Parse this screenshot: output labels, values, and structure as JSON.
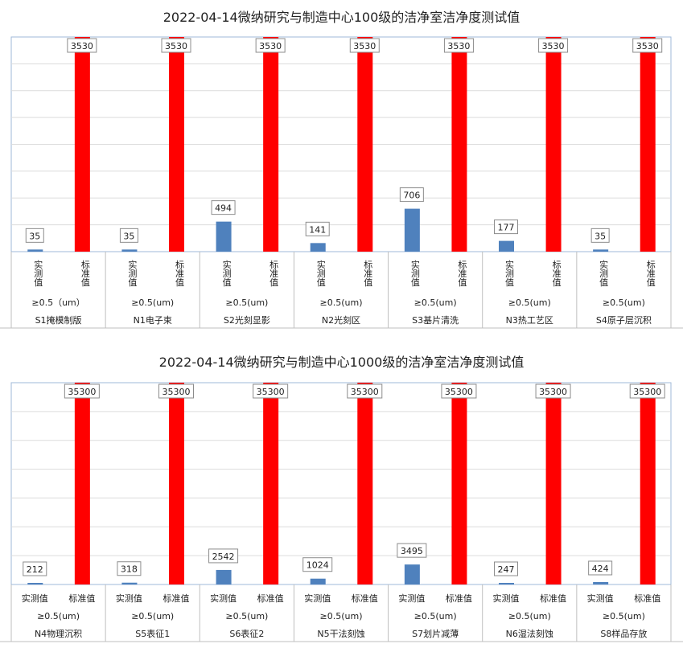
{
  "chart_data": [
    {
      "type": "bar",
      "title": "2022-04-14微纳研究与制造中心100级的洁净室洁净度测试值",
      "series_labels": [
        "实测值",
        "标准值"
      ],
      "groups": [
        {
          "particle": "≥0.5（um）",
          "name": "S1掩模制版",
          "measured": 35,
          "standard": 3530
        },
        {
          "particle": "≥0.5(um)",
          "name": "N1电子束",
          "measured": 35,
          "standard": 3530
        },
        {
          "particle": "≥0.5(um)",
          "name": "S2光刻显影",
          "measured": 494,
          "standard": 3530
        },
        {
          "particle": "≥0.5(um)",
          "name": "N2光刻区",
          "measured": 141,
          "standard": 3530
        },
        {
          "particle": "≥0.5(um)",
          "name": "S3基片清洗",
          "measured": 706,
          "standard": 3530
        },
        {
          "particle": "≥0.5(um)",
          "name": "N3热工艺区",
          "measured": 177,
          "standard": 3530
        },
        {
          "particle": "≥0.5(um)",
          "name": "S4原子层沉积",
          "measured": 35,
          "standard": 3530
        }
      ],
      "ylim": [
        0,
        3530
      ],
      "colors": {
        "measured": "#4f81bd",
        "standard": "#ff0000"
      },
      "grid": true
    },
    {
      "type": "bar",
      "title": "2022-04-14微纳研究与制造中心1000级的洁净室洁净度测试值",
      "series_labels": [
        "实测值",
        "标准值"
      ],
      "groups": [
        {
          "particle": "≥0.5(um)",
          "name": "N4物理沉积",
          "measured": 212,
          "standard": 35300
        },
        {
          "particle": "≥0.5(um)",
          "name": "S5表征1",
          "measured": 318,
          "standard": 35300
        },
        {
          "particle": "≥0.5(um)",
          "name": "S6表征2",
          "measured": 2542,
          "standard": 35300
        },
        {
          "particle": "≥0.5(um)",
          "name": "N5干法刻蚀",
          "measured": 1024,
          "standard": 35300
        },
        {
          "particle": "≥0.5(um)",
          "name": "S7划片减薄",
          "measured": 3495,
          "standard": 35300
        },
        {
          "particle": "≥0.5(um)",
          "name": "N6湿法刻蚀",
          "measured": 247,
          "standard": 35300
        },
        {
          "particle": "≥0.5(um)",
          "name": "S8样品存放",
          "measured": 424,
          "standard": 35300
        }
      ],
      "ylim": [
        0,
        35300
      ],
      "colors": {
        "measured": "#4f81bd",
        "standard": "#ff0000"
      },
      "grid": true
    }
  ]
}
